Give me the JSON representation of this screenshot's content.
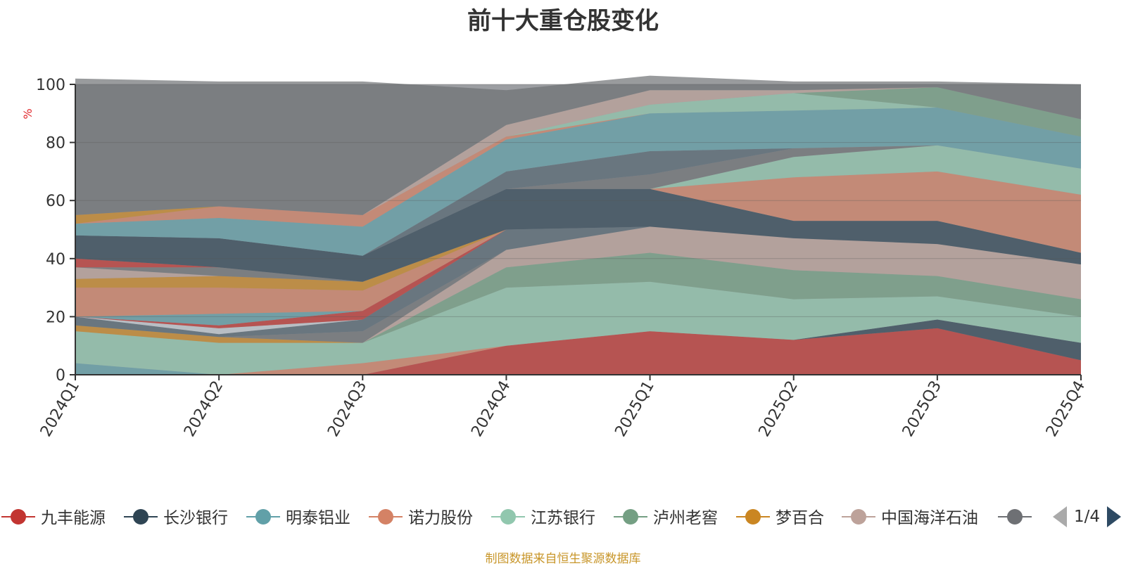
{
  "chart_data": {
    "type": "area",
    "title": "前十大重仓股变化",
    "ylabel": "%",
    "ylim": [
      0,
      100
    ],
    "yticks": [
      0,
      20,
      40,
      60,
      80,
      100
    ],
    "grid": true,
    "stacked": true,
    "legend_position": "bottom",
    "categories": [
      "2024Q1",
      "2024Q2",
      "2024Q3",
      "2024Q4",
      "2025Q1",
      "2025Q2",
      "2025Q3",
      "2025Q4"
    ],
    "series": [
      {
        "name": "九丰能源",
        "color": "#c23531",
        "values": [
          0,
          0,
          0,
          10,
          15,
          12,
          16,
          5
        ]
      },
      {
        "name": "长沙银行",
        "color": "#2f4554",
        "values": [
          0,
          0,
          0,
          0,
          0,
          0,
          3,
          6
        ]
      },
      {
        "name": "明泰铝业",
        "color": "#61a0a8",
        "values": [
          4,
          0,
          0,
          0,
          0,
          0,
          0,
          0
        ]
      },
      {
        "name": "诺力股份",
        "color": "#d48265",
        "values": [
          0,
          0,
          4,
          0,
          0,
          0,
          0,
          0
        ]
      },
      {
        "name": "江苏银行",
        "color": "#91c7ae",
        "values": [
          11,
          11,
          7,
          20,
          17,
          14,
          8,
          9
        ]
      },
      {
        "name": "泸州老窖",
        "color": "#749f83",
        "values": [
          0,
          0,
          0,
          7,
          10,
          10,
          7,
          6
        ]
      },
      {
        "name": "梦百合",
        "color": "#ca8622",
        "values": [
          2,
          2,
          0,
          0,
          0,
          0,
          0,
          0
        ]
      },
      {
        "name": "中国海洋石油",
        "color": "#bda29a",
        "values": [
          0,
          0,
          0,
          6,
          9,
          11,
          11,
          12
        ]
      },
      {
        "series_index": 9,
        "color": "#6e7074",
        "values": [
          0,
          0,
          4,
          0,
          0,
          0,
          0,
          0
        ]
      },
      {
        "series_index": 10,
        "color": "#546570",
        "values": [
          3,
          1,
          4,
          7,
          0,
          0,
          0,
          0
        ]
      },
      {
        "series_index": 11,
        "color": "#c4ccd3",
        "values": [
          0,
          2,
          0,
          0,
          0,
          0,
          0,
          0
        ]
      },
      {
        "series_index": 12,
        "color": "#c23531",
        "values": [
          0,
          1,
          3,
          0,
          0,
          0,
          0,
          0
        ]
      },
      {
        "series_index": 13,
        "color": "#61a0a8",
        "values": [
          0,
          4,
          0,
          0,
          0,
          0,
          0,
          0
        ]
      },
      {
        "series_index": 14,
        "color": "#d48265",
        "values": [
          10,
          9,
          7,
          0,
          0,
          0,
          0,
          0
        ]
      },
      {
        "series_index": 15,
        "color": "#ca8622",
        "values": [
          3,
          4,
          3,
          0,
          0,
          0,
          0,
          0
        ]
      },
      {
        "series_index": 16,
        "color": "#bda29a",
        "values": [
          4,
          0,
          0,
          0,
          0,
          0,
          0,
          0
        ]
      },
      {
        "series_index": 17,
        "color": "#6e7074",
        "values": [
          0,
          3,
          0,
          0,
          0,
          0,
          0,
          0
        ]
      },
      {
        "series_index": 18,
        "color": "#c23531",
        "values": [
          3,
          0,
          0,
          0,
          0,
          0,
          0,
          0
        ]
      },
      {
        "series_index": 19,
        "color": "#2f4554",
        "values": [
          8,
          10,
          9,
          14,
          13,
          6,
          8,
          4
        ]
      },
      {
        "series_index": 20,
        "color": "#d48265",
        "values": [
          0,
          0,
          0,
          0,
          0,
          15,
          17,
          20
        ]
      },
      {
        "series_index": 21,
        "color": "#91c7ae",
        "values": [
          0,
          0,
          0,
          0,
          0,
          7,
          9,
          9
        ]
      },
      {
        "series_index": 22,
        "color": "#6e7074",
        "values": [
          0,
          0,
          0,
          0,
          5,
          3,
          0,
          0
        ]
      },
      {
        "series_index": 23,
        "color": "#546570",
        "values": [
          0,
          0,
          0,
          6,
          8,
          0,
          0,
          0
        ]
      },
      {
        "series_index": 24,
        "color": "#61a0a8",
        "values": [
          4,
          7,
          10,
          11,
          13,
          13,
          13,
          11
        ]
      },
      {
        "series_index": 25,
        "color": "#d48265",
        "values": [
          0,
          4,
          4,
          1,
          0,
          0,
          0,
          0
        ]
      },
      {
        "series_index": 26,
        "color": "#ca8622",
        "values": [
          3,
          0,
          0,
          0,
          0,
          0,
          0,
          0
        ]
      },
      {
        "series_index": 27,
        "color": "#91c7ae",
        "values": [
          0,
          0,
          0,
          0,
          3,
          6,
          0,
          0
        ]
      },
      {
        "series_index": 28,
        "color": "#749f83",
        "values": [
          0,
          0,
          0,
          0,
          0,
          0,
          7,
          6
        ]
      },
      {
        "series_index": 29,
        "color": "#bda29a",
        "values": [
          0,
          0,
          0,
          4,
          5,
          1,
          0,
          0
        ]
      },
      {
        "series_index": 30,
        "color": "#6e7074",
        "values": [
          47,
          43,
          46,
          12,
          5,
          3,
          2,
          12
        ]
      }
    ]
  },
  "legend": {
    "items": [
      {
        "label": "九丰能源",
        "color": "#c23531"
      },
      {
        "label": "长沙银行",
        "color": "#2f4554"
      },
      {
        "label": "明泰铝业",
        "color": "#61a0a8"
      },
      {
        "label": "诺力股份",
        "color": "#d48265"
      },
      {
        "label": "江苏银行",
        "color": "#91c7ae"
      },
      {
        "label": "泸州老窖",
        "color": "#749f83"
      },
      {
        "label": "梦百合",
        "color": "#ca8622"
      },
      {
        "label": "中国海洋石油",
        "color": "#bda29a"
      },
      {
        "label": "",
        "color": "#6e7074"
      }
    ],
    "page_indicator": "1/4"
  },
  "footnote": "制图数据来自恒生聚源数据库"
}
